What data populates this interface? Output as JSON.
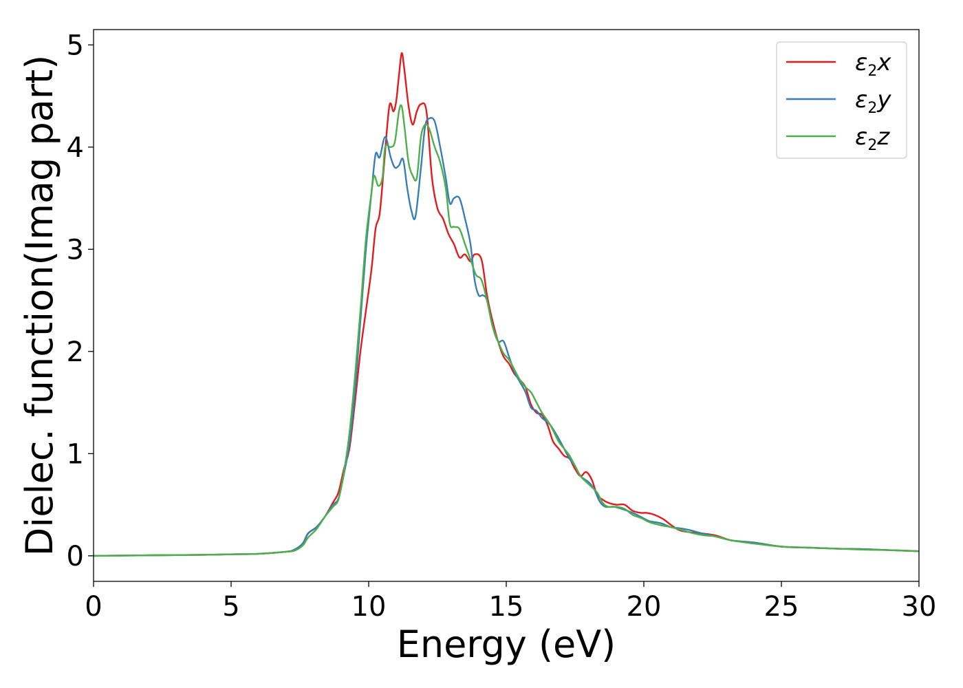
{
  "chart_data": {
    "type": "line",
    "xlabel": "Energy (eV)",
    "ylabel": "Dielec. function(Imag part)",
    "xlim": [
      0,
      30
    ],
    "ylim": [
      -0.25,
      5.15
    ],
    "xticks": [
      0,
      5,
      10,
      15,
      20,
      25,
      30
    ],
    "yticks": [
      0,
      1,
      2,
      3,
      4,
      5
    ],
    "xtick_labels": [
      "0",
      "5",
      "10",
      "15",
      "20",
      "25",
      "30"
    ],
    "ytick_labels": [
      "0",
      "1",
      "2",
      "3",
      "4",
      "5"
    ],
    "grid": false,
    "legend_position": "top-right",
    "series": [
      {
        "name": "ε₂x",
        "label_base": "ε",
        "label_sub": "2",
        "label_var": "x",
        "color": "#e41a1c",
        "points": [
          [
            0,
            0
          ],
          [
            2,
            0.005
          ],
          [
            4,
            0.01
          ],
          [
            5,
            0.015
          ],
          [
            6,
            0.02
          ],
          [
            7,
            0.04
          ],
          [
            7.3,
            0.06
          ],
          [
            7.6,
            0.12
          ],
          [
            7.8,
            0.22
          ],
          [
            8.1,
            0.28
          ],
          [
            8.4,
            0.38
          ],
          [
            8.7,
            0.52
          ],
          [
            8.9,
            0.62
          ],
          [
            9.1,
            0.85
          ],
          [
            9.3,
            1.05
          ],
          [
            9.5,
            1.5
          ],
          [
            9.7,
            2.0
          ],
          [
            9.9,
            2.4
          ],
          [
            10.1,
            2.8
          ],
          [
            10.25,
            3.2
          ],
          [
            10.4,
            3.35
          ],
          [
            10.55,
            3.8
          ],
          [
            10.75,
            4.4
          ],
          [
            10.9,
            4.35
          ],
          [
            11.0,
            4.45
          ],
          [
            11.1,
            4.7
          ],
          [
            11.2,
            4.92
          ],
          [
            11.3,
            4.75
          ],
          [
            11.45,
            4.4
          ],
          [
            11.6,
            4.22
          ],
          [
            11.75,
            4.35
          ],
          [
            11.9,
            4.42
          ],
          [
            12.1,
            4.35
          ],
          [
            12.3,
            3.7
          ],
          [
            12.5,
            3.4
          ],
          [
            12.7,
            3.3
          ],
          [
            12.9,
            3.15
          ],
          [
            13.1,
            3.05
          ],
          [
            13.3,
            2.92
          ],
          [
            13.5,
            2.95
          ],
          [
            13.7,
            2.88
          ],
          [
            13.85,
            2.95
          ],
          [
            14.1,
            2.9
          ],
          [
            14.3,
            2.55
          ],
          [
            14.5,
            2.3
          ],
          [
            14.7,
            2.1
          ],
          [
            14.9,
            1.95
          ],
          [
            15.1,
            1.88
          ],
          [
            15.3,
            1.78
          ],
          [
            15.5,
            1.72
          ],
          [
            15.7,
            1.65
          ],
          [
            15.9,
            1.48
          ],
          [
            16.1,
            1.4
          ],
          [
            16.3,
            1.38
          ],
          [
            16.5,
            1.28
          ],
          [
            16.7,
            1.12
          ],
          [
            16.9,
            1.05
          ],
          [
            17.1,
            0.98
          ],
          [
            17.3,
            0.95
          ],
          [
            17.5,
            0.85
          ],
          [
            17.7,
            0.78
          ],
          [
            17.9,
            0.82
          ],
          [
            18.1,
            0.75
          ],
          [
            18.3,
            0.6
          ],
          [
            18.5,
            0.55
          ],
          [
            18.7,
            0.52
          ],
          [
            19.0,
            0.5
          ],
          [
            19.3,
            0.5
          ],
          [
            19.6,
            0.44
          ],
          [
            19.9,
            0.42
          ],
          [
            20.1,
            0.42
          ],
          [
            20.4,
            0.4
          ],
          [
            20.7,
            0.36
          ],
          [
            21.0,
            0.3
          ],
          [
            21.3,
            0.25
          ],
          [
            21.7,
            0.23
          ],
          [
            22.1,
            0.22
          ],
          [
            22.6,
            0.2
          ],
          [
            23.2,
            0.15
          ],
          [
            24,
            0.13
          ],
          [
            25,
            0.09
          ],
          [
            26,
            0.08
          ],
          [
            27,
            0.07
          ],
          [
            28,
            0.065
          ],
          [
            29,
            0.055
          ],
          [
            30,
            0.045
          ]
        ]
      },
      {
        "name": "ε₂y",
        "label_base": "ε",
        "label_sub": "2",
        "label_var": "y",
        "color": "#377eb8",
        "points": [
          [
            0,
            0
          ],
          [
            2,
            0.005
          ],
          [
            4,
            0.01
          ],
          [
            5,
            0.015
          ],
          [
            6,
            0.02
          ],
          [
            7,
            0.04
          ],
          [
            7.3,
            0.06
          ],
          [
            7.6,
            0.12
          ],
          [
            7.8,
            0.22
          ],
          [
            8.1,
            0.28
          ],
          [
            8.4,
            0.38
          ],
          [
            8.7,
            0.5
          ],
          [
            8.9,
            0.56
          ],
          [
            9.1,
            0.8
          ],
          [
            9.3,
            1.1
          ],
          [
            9.5,
            1.6
          ],
          [
            9.7,
            2.3
          ],
          [
            9.9,
            3.0
          ],
          [
            10.1,
            3.55
          ],
          [
            10.25,
            3.93
          ],
          [
            10.4,
            3.9
          ],
          [
            10.6,
            4.1
          ],
          [
            10.8,
            3.9
          ],
          [
            10.95,
            3.8
          ],
          [
            11.1,
            3.82
          ],
          [
            11.25,
            3.88
          ],
          [
            11.4,
            3.6
          ],
          [
            11.55,
            3.38
          ],
          [
            11.7,
            3.32
          ],
          [
            11.9,
            3.8
          ],
          [
            12.05,
            4.2
          ],
          [
            12.2,
            4.28
          ],
          [
            12.4,
            4.25
          ],
          [
            12.6,
            4.0
          ],
          [
            12.8,
            3.7
          ],
          [
            12.95,
            3.45
          ],
          [
            13.1,
            3.5
          ],
          [
            13.3,
            3.5
          ],
          [
            13.5,
            3.3
          ],
          [
            13.7,
            3.05
          ],
          [
            13.85,
            2.7
          ],
          [
            14.0,
            2.55
          ],
          [
            14.15,
            2.55
          ],
          [
            14.3,
            2.5
          ],
          [
            14.5,
            2.25
          ],
          [
            14.7,
            2.1
          ],
          [
            14.9,
            2.1
          ],
          [
            15.1,
            1.95
          ],
          [
            15.3,
            1.8
          ],
          [
            15.5,
            1.7
          ],
          [
            15.7,
            1.6
          ],
          [
            15.9,
            1.45
          ],
          [
            16.1,
            1.42
          ],
          [
            16.3,
            1.35
          ],
          [
            16.6,
            1.28
          ],
          [
            16.9,
            1.15
          ],
          [
            17.1,
            1.05
          ],
          [
            17.3,
            0.95
          ],
          [
            17.5,
            0.88
          ],
          [
            17.7,
            0.78
          ],
          [
            18.0,
            0.72
          ],
          [
            18.2,
            0.65
          ],
          [
            18.4,
            0.53
          ],
          [
            18.6,
            0.48
          ],
          [
            18.9,
            0.48
          ],
          [
            19.2,
            0.46
          ],
          [
            19.6,
            0.42
          ],
          [
            19.9,
            0.38
          ],
          [
            20.2,
            0.34
          ],
          [
            20.6,
            0.32
          ],
          [
            21.0,
            0.28
          ],
          [
            21.3,
            0.27
          ],
          [
            21.7,
            0.25
          ],
          [
            22.1,
            0.22
          ],
          [
            22.6,
            0.19
          ],
          [
            23.2,
            0.15
          ],
          [
            24,
            0.13
          ],
          [
            25,
            0.09
          ],
          [
            26,
            0.08
          ],
          [
            27,
            0.07
          ],
          [
            28,
            0.065
          ],
          [
            29,
            0.055
          ],
          [
            30,
            0.045
          ]
        ]
      },
      {
        "name": "ε₂z",
        "label_base": "ε",
        "label_sub": "2",
        "label_var": "z",
        "color": "#4daf4a",
        "points": [
          [
            0,
            0
          ],
          [
            2,
            0.005
          ],
          [
            4,
            0.01
          ],
          [
            5,
            0.015
          ],
          [
            6,
            0.02
          ],
          [
            7,
            0.04
          ],
          [
            7.3,
            0.05
          ],
          [
            7.6,
            0.1
          ],
          [
            7.8,
            0.18
          ],
          [
            8.1,
            0.26
          ],
          [
            8.4,
            0.38
          ],
          [
            8.7,
            0.48
          ],
          [
            8.9,
            0.55
          ],
          [
            9.1,
            0.82
          ],
          [
            9.3,
            1.2
          ],
          [
            9.5,
            1.75
          ],
          [
            9.7,
            2.4
          ],
          [
            9.9,
            3.1
          ],
          [
            10.1,
            3.55
          ],
          [
            10.2,
            3.72
          ],
          [
            10.35,
            3.62
          ],
          [
            10.5,
            3.7
          ],
          [
            10.6,
            4.0
          ],
          [
            10.8,
            4.0
          ],
          [
            10.95,
            4.05
          ],
          [
            11.1,
            4.35
          ],
          [
            11.2,
            4.4
          ],
          [
            11.3,
            4.2
          ],
          [
            11.45,
            3.85
          ],
          [
            11.6,
            3.72
          ],
          [
            11.75,
            3.7
          ],
          [
            11.9,
            4.1
          ],
          [
            12.05,
            4.22
          ],
          [
            12.2,
            4.18
          ],
          [
            12.4,
            4.0
          ],
          [
            12.6,
            3.85
          ],
          [
            12.8,
            3.6
          ],
          [
            12.95,
            3.25
          ],
          [
            13.1,
            3.22
          ],
          [
            13.3,
            3.2
          ],
          [
            13.5,
            3.05
          ],
          [
            13.7,
            2.9
          ],
          [
            13.9,
            2.75
          ],
          [
            14.1,
            2.7
          ],
          [
            14.3,
            2.5
          ],
          [
            14.5,
            2.25
          ],
          [
            14.7,
            2.1
          ],
          [
            14.9,
            1.98
          ],
          [
            15.1,
            1.92
          ],
          [
            15.3,
            1.82
          ],
          [
            15.5,
            1.72
          ],
          [
            15.7,
            1.65
          ],
          [
            15.9,
            1.6
          ],
          [
            16.1,
            1.5
          ],
          [
            16.3,
            1.4
          ],
          [
            16.6,
            1.28
          ],
          [
            16.9,
            1.12
          ],
          [
            17.1,
            1.05
          ],
          [
            17.3,
            0.98
          ],
          [
            17.5,
            0.88
          ],
          [
            17.7,
            0.78
          ],
          [
            18.0,
            0.7
          ],
          [
            18.3,
            0.62
          ],
          [
            18.5,
            0.52
          ],
          [
            18.7,
            0.48
          ],
          [
            19.0,
            0.48
          ],
          [
            19.3,
            0.46
          ],
          [
            19.6,
            0.4
          ],
          [
            19.9,
            0.37
          ],
          [
            20.2,
            0.33
          ],
          [
            20.6,
            0.3
          ],
          [
            21.0,
            0.28
          ],
          [
            21.4,
            0.25
          ],
          [
            21.8,
            0.22
          ],
          [
            22.2,
            0.2
          ],
          [
            22.6,
            0.19
          ],
          [
            23.2,
            0.15
          ],
          [
            24,
            0.12
          ],
          [
            25,
            0.09
          ],
          [
            26,
            0.08
          ],
          [
            27,
            0.07
          ],
          [
            28,
            0.06
          ],
          [
            29,
            0.055
          ],
          [
            30,
            0.045
          ]
        ]
      }
    ]
  }
}
